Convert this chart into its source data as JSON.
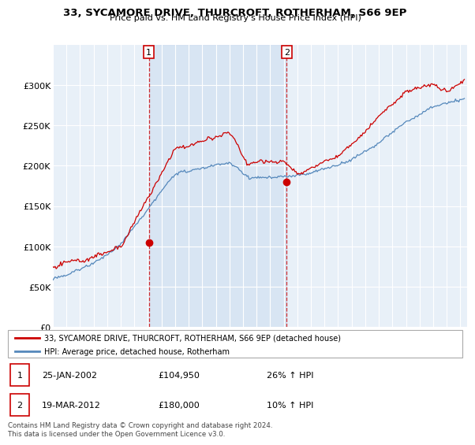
{
  "title": "33, SYCAMORE DRIVE, THURCROFT, ROTHERHAM, S66 9EP",
  "subtitle": "Price paid vs. HM Land Registry's House Price Index (HPI)",
  "legend_line1": "33, SYCAMORE DRIVE, THURCROFT, ROTHERHAM, S66 9EP (detached house)",
  "legend_line2": "HPI: Average price, detached house, Rotherham",
  "annotation1_label": "1",
  "annotation1_date": "25-JAN-2002",
  "annotation1_price": "£104,950",
  "annotation1_hpi": "26% ↑ HPI",
  "annotation2_label": "2",
  "annotation2_date": "19-MAR-2012",
  "annotation2_price": "£180,000",
  "annotation2_hpi": "10% ↑ HPI",
  "footer": "Contains HM Land Registry data © Crown copyright and database right 2024.\nThis data is licensed under the Open Government Licence v3.0.",
  "red_color": "#cc0000",
  "blue_color": "#5588bb",
  "shade_color": "#ddeeff",
  "background_color": "#ffffff",
  "plot_bg_color": "#e8f0f8",
  "grid_color": "#cccccc",
  "ylim": [
    0,
    350000
  ],
  "yticks": [
    0,
    50000,
    100000,
    150000,
    200000,
    250000,
    300000
  ],
  "ytick_labels": [
    "£0",
    "£50K",
    "£100K",
    "£150K",
    "£200K",
    "£250K",
    "£300K"
  ],
  "sale1_x": 2002.07,
  "sale1_y": 104950,
  "sale2_x": 2012.22,
  "sale2_y": 180000,
  "xmin": 1995.0,
  "xmax": 2025.5
}
